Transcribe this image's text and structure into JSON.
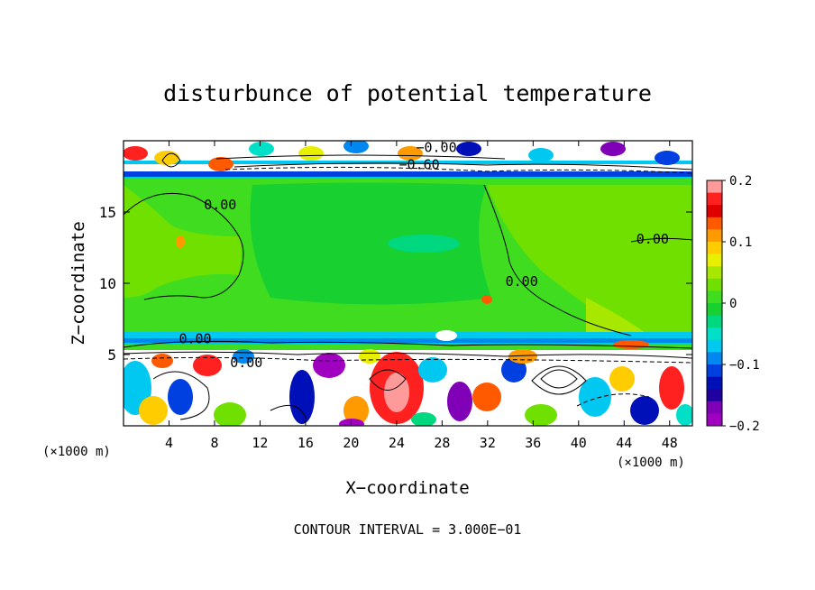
{
  "chart_data": {
    "type": "heatmap",
    "title": "disturbunce of potential temperature",
    "xlabel": "X−coordinate",
    "ylabel": "Z−coordinate",
    "x_unit_left": "(×1000 m)",
    "x_unit_right": "(×1000 m)",
    "xlim": [
      0,
      50
    ],
    "ylim": [
      0,
      20
    ],
    "x_ticks": [
      4,
      8,
      12,
      16,
      20,
      24,
      28,
      32,
      36,
      40,
      44,
      48
    ],
    "x_tick_labels": [
      "4",
      "8",
      "12",
      "16",
      "20",
      "24",
      "28",
      "32",
      "36",
      "40",
      "44",
      "48"
    ],
    "y_ticks": [
      5,
      10,
      15
    ],
    "y_tick_labels": [
      "5",
      "10",
      "15"
    ],
    "colorbar": {
      "min": -0.2,
      "max": 0.2,
      "ticks": [
        0.2,
        0.1,
        0,
        -0.1,
        -0.2
      ],
      "tick_labels": [
        "0.2",
        "0.1",
        "0",
        "−0.1",
        "−0.2"
      ],
      "colors": [
        "#ff9a9a",
        "#ff2020",
        "#e00000",
        "#ff5a00",
        "#ff9a00",
        "#ffcc00",
        "#e8f000",
        "#a8e800",
        "#70e000",
        "#40dc20",
        "#18d030",
        "#00d880",
        "#00e0c8",
        "#00c8f0",
        "#0088f0",
        "#0040e0",
        "#0010b8",
        "#2000a0",
        "#8000b8",
        "#a000c0"
      ]
    },
    "contour_labels": [
      {
        "text": "0.00",
        "x": 8.5,
        "z": 15.2
      },
      {
        "text": "0.00",
        "x": 46.5,
        "z": 12.8
      },
      {
        "text": "0.00",
        "x": 6.3,
        "z": 5.8
      },
      {
        "text": "0.00",
        "x": 10.8,
        "z": 4.1
      },
      {
        "text": "−0.60",
        "x": 26.0,
        "z": 18.0
      },
      {
        "text": "−0.00",
        "x": 27.5,
        "z": 19.2
      },
      {
        "text": "0.00",
        "x": 35.0,
        "z": 9.8
      }
    ],
    "footer": "CONTOUR INTERVAL = 3.000E−01"
  }
}
